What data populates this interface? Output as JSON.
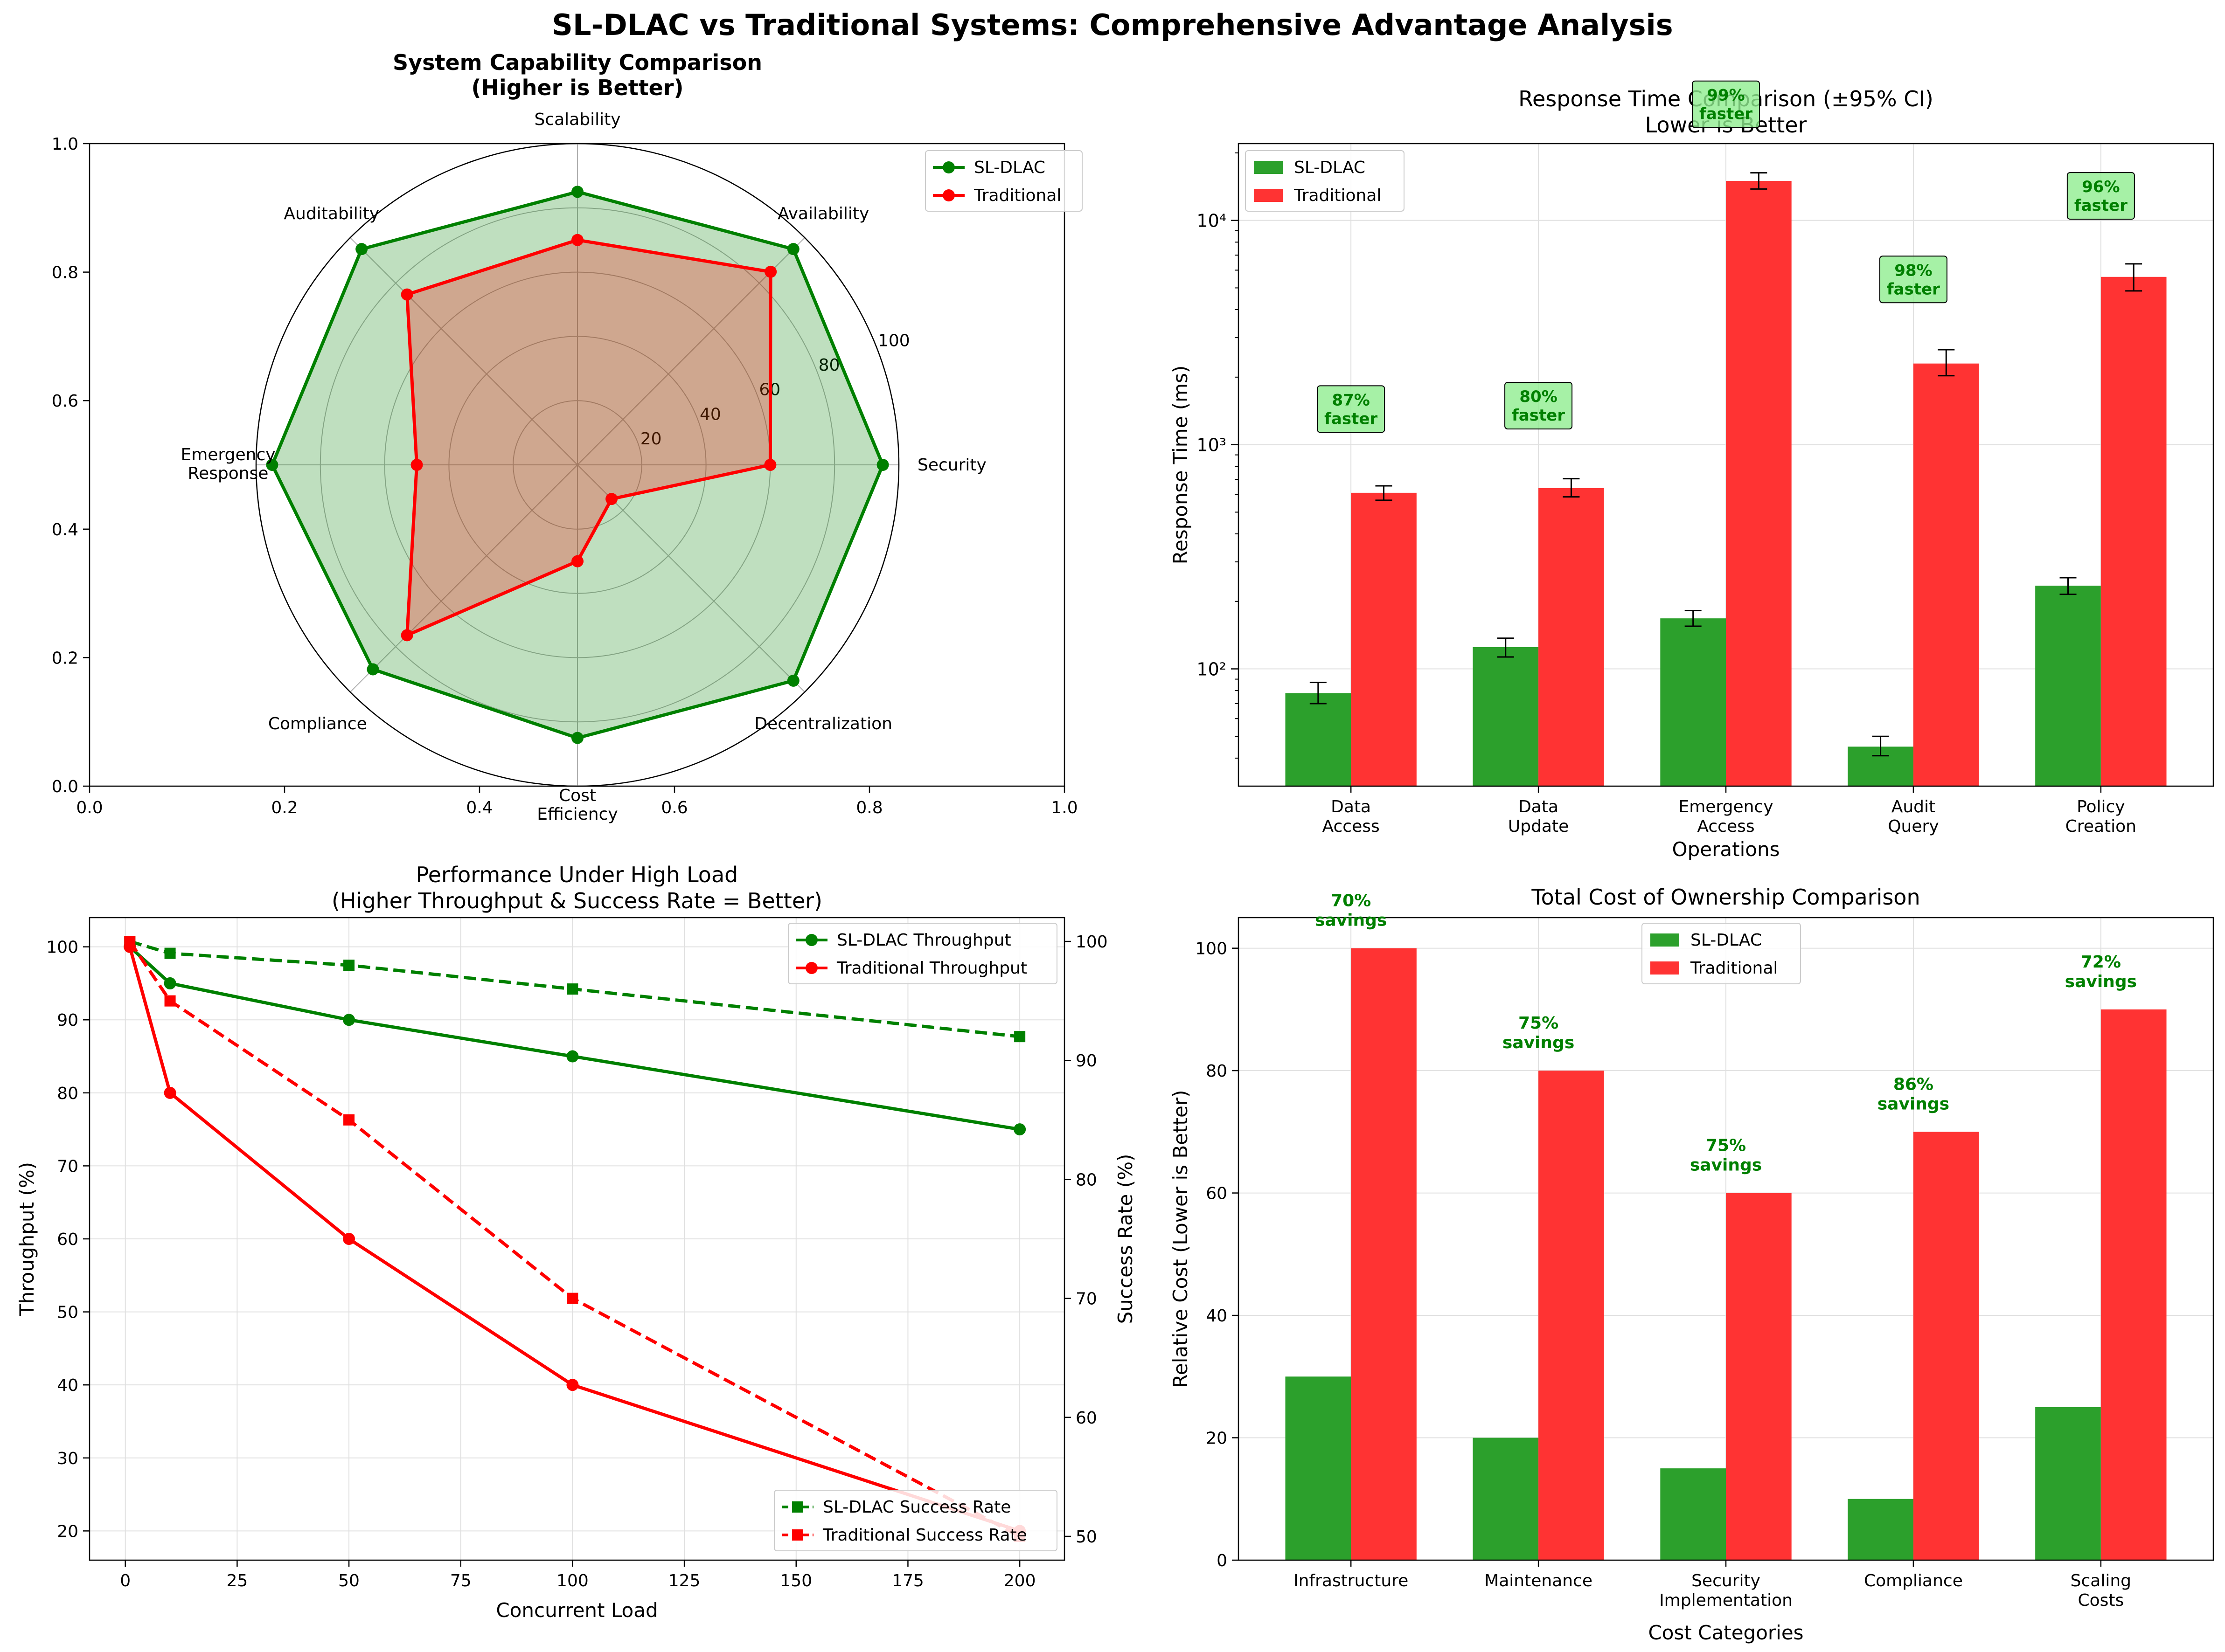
{
  "figure": {
    "title": "SL-DLAC vs Traditional Systems: Comprehensive Advantage Analysis"
  },
  "colors": {
    "sldlac": "#008000",
    "traditional": "#ff0000",
    "sldlac_bar": "#2ca02c",
    "traditional_bar": "#ff3333",
    "annotation_fill": "#90ee90",
    "annotation_text": "#008000"
  },
  "chart_data": [
    {
      "id": "radar",
      "type": "radar",
      "title": "System Capability Comparison\n(Higher is Better)",
      "axes": [
        "Security",
        "Availability",
        "Scalability",
        "Auditability",
        "Emergency\nResponse",
        "Compliance",
        "Cost\nEfficiency",
        "Decentralization"
      ],
      "radial_ticks": [
        20,
        40,
        60,
        80,
        100
      ],
      "radial_range": [
        0,
        100
      ],
      "series": [
        {
          "name": "SL-DLAC",
          "values": [
            95,
            95,
            85,
            95,
            95,
            90,
            85,
            95
          ]
        },
        {
          "name": "Traditional",
          "values": [
            60,
            85,
            70,
            75,
            50,
            75,
            30,
            15
          ]
        }
      ],
      "frame_axes": {
        "x_ticks": [
          "0.0",
          "0.2",
          "0.4",
          "0.6",
          "0.8",
          "1.0"
        ],
        "y_ticks": [
          "0.0",
          "0.2",
          "0.4",
          "0.6",
          "0.8",
          "1.0"
        ]
      },
      "legend_position": "upper-right"
    },
    {
      "id": "response",
      "type": "bar",
      "title": "Response Time Comparison (±95% CI)\nLower is Better",
      "xlabel": "Operations",
      "ylabel": "Response Time (ms)",
      "yscale": "log",
      "ylim": [
        30,
        22000
      ],
      "y_ticks": [
        "10²",
        "10³",
        "10⁴"
      ],
      "categories": [
        "Data\nAccess",
        "Data\nUpdate",
        "Emergency\nAccess",
        "Audit\nQuery",
        "Policy\nCreation"
      ],
      "series": [
        {
          "name": "SL-DLAC",
          "values": [
            78,
            125,
            168,
            45,
            235
          ],
          "ci_low": [
            70,
            113,
            155,
            41,
            215
          ],
          "ci_high": [
            87,
            137,
            182,
            50,
            255
          ]
        },
        {
          "name": "Traditional",
          "values": [
            610,
            640,
            15000,
            2300,
            5600
          ],
          "ci_low": [
            565,
            585,
            13800,
            2030,
            4850
          ],
          "ci_high": [
            655,
            705,
            16300,
            2650,
            6400
          ]
        }
      ],
      "annotations": [
        "87%\nfaster",
        "80%\nfaster",
        "99%\nfaster",
        "98%\nfaster",
        "96%\nfaster"
      ],
      "annotation_y": [
        1400,
        1450,
        32000,
        5300,
        12500
      ],
      "legend_position": "upper-left"
    },
    {
      "id": "load",
      "type": "line",
      "title": "Performance Under High Load\n(Higher Throughput & Success Rate = Better)",
      "xlabel": "Concurrent Load",
      "ylabel": "Throughput (%)",
      "ylabel_right": "Success Rate (%)",
      "x": [
        1,
        10,
        50,
        100,
        200
      ],
      "xlim": [
        -8,
        210
      ],
      "ylim": [
        16,
        104
      ],
      "ylim_right": [
        48,
        102
      ],
      "x_ticks": [
        0,
        25,
        50,
        75,
        100,
        125,
        150,
        175,
        200
      ],
      "y_ticks": [
        20,
        30,
        40,
        50,
        60,
        70,
        80,
        90,
        100
      ],
      "y_ticks_right": [
        50,
        60,
        70,
        80,
        90,
        100
      ],
      "series": [
        {
          "name": "SL-DLAC Throughput",
          "axis": "left",
          "values": [
            100,
            95,
            90,
            85,
            75
          ]
        },
        {
          "name": "Traditional Throughput",
          "axis": "left",
          "values": [
            100,
            80,
            60,
            40,
            20
          ]
        },
        {
          "name": "SL-DLAC Success Rate",
          "axis": "right",
          "values": [
            100,
            99,
            98,
            96,
            92
          ]
        },
        {
          "name": "Traditional Success Rate",
          "axis": "right",
          "values": [
            100,
            95,
            85,
            70,
            50
          ]
        }
      ],
      "legend_position": "upper-right / lower-right"
    },
    {
      "id": "cost",
      "type": "bar",
      "title": "Total Cost of Ownership Comparison",
      "xlabel": "Cost Categories",
      "ylabel": "Relative Cost (Lower is Better)",
      "ylim": [
        0,
        105
      ],
      "y_ticks": [
        0,
        20,
        40,
        60,
        80,
        100
      ],
      "categories": [
        "Infrastructure",
        "Maintenance",
        "Security\nImplementation",
        "Compliance",
        "Scaling\nCosts"
      ],
      "series": [
        {
          "name": "SL-DLAC",
          "values": [
            30,
            20,
            15,
            10,
            25
          ]
        },
        {
          "name": "Traditional",
          "values": [
            100,
            80,
            60,
            70,
            90
          ]
        }
      ],
      "annotations": [
        "70%\nsavings",
        "75%\nsavings",
        "75%\nsavings",
        "86%\nsavings",
        "72%\nsavings"
      ],
      "legend_position": "upper-center"
    }
  ]
}
